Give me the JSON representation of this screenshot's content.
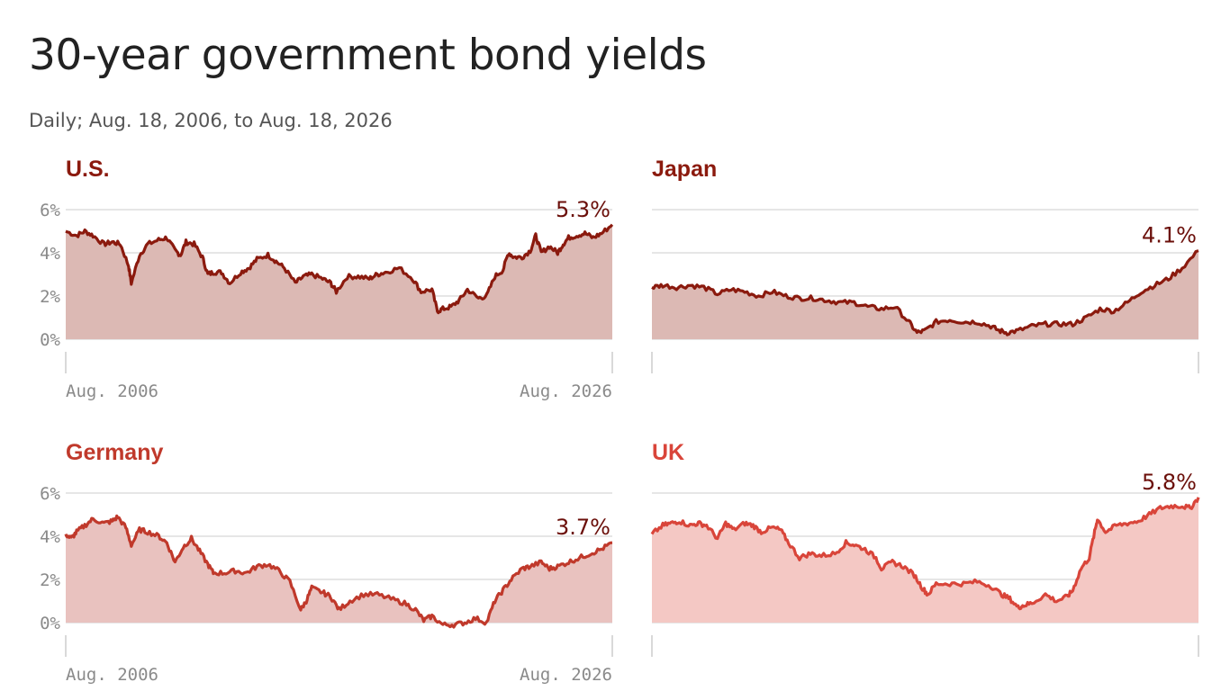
{
  "title": "30-year government bond yields",
  "subtitle": "Daily; Aug. 18, 2006, to Aug. 18, 2026",
  "chart_data": [
    {
      "type": "area",
      "title": "U.S.",
      "color": "#8b1a0e",
      "fill": "#dcb9b4",
      "ylim": [
        0,
        6
      ],
      "yticks": [
        "0%",
        "2%",
        "4%",
        "6%"
      ],
      "xtick_labels": [
        "Aug. 2006",
        "Aug. 2026"
      ],
      "end_label": "5.3%",
      "x": [
        2006.6,
        2007.0,
        2007.3,
        2007.6,
        2008.0,
        2008.3,
        2008.6,
        2008.9,
        2009.0,
        2009.3,
        2009.6,
        2010.0,
        2010.3,
        2010.6,
        2010.8,
        2011.0,
        2011.3,
        2011.6,
        2011.8,
        2012.0,
        2012.3,
        2012.6,
        2013.0,
        2013.3,
        2013.6,
        2014.0,
        2014.3,
        2014.6,
        2015.0,
        2015.3,
        2015.6,
        2016.0,
        2016.3,
        2016.5,
        2016.9,
        2017.3,
        2017.7,
        2018.0,
        2018.3,
        2018.8,
        2019.3,
        2019.6,
        2020.0,
        2020.2,
        2020.4,
        2020.7,
        2021.0,
        2021.3,
        2021.7,
        2022.0,
        2022.3,
        2022.6,
        2022.8,
        2023.0,
        2023.3,
        2023.6,
        2023.8,
        2024.0,
        2024.3,
        2024.6,
        2024.8,
        2025.0,
        2025.3,
        2025.6,
        2025.9,
        2026.2,
        2026.6
      ],
      "values": [
        5.0,
        4.8,
        5.0,
        4.8,
        4.4,
        4.5,
        4.4,
        3.4,
        2.6,
        3.9,
        4.4,
        4.6,
        4.7,
        4.1,
        3.9,
        4.5,
        4.4,
        3.8,
        3.0,
        3.1,
        3.1,
        2.6,
        3.1,
        3.3,
        3.7,
        3.9,
        3.6,
        3.3,
        2.6,
        2.9,
        3.0,
        2.8,
        2.6,
        2.2,
        2.9,
        2.9,
        2.8,
        3.0,
        3.1,
        3.3,
        2.8,
        2.2,
        2.3,
        1.3,
        1.4,
        1.5,
        1.8,
        2.3,
        1.9,
        2.0,
        2.9,
        3.2,
        4.0,
        3.8,
        3.8,
        4.1,
        4.8,
        4.0,
        4.3,
        4.0,
        4.4,
        4.7,
        4.8,
        4.9,
        4.7,
        4.9,
        5.3
      ]
    },
    {
      "type": "area",
      "title": "Japan",
      "color": "#8b1a0e",
      "fill": "#dcb9b4",
      "ylim": [
        0,
        6
      ],
      "yticks": [
        "0%",
        "2%",
        "4%",
        "6%"
      ],
      "xtick_labels": [],
      "end_label": "4.1%",
      "x": [
        2006.6,
        2007.0,
        2007.5,
        2008.0,
        2008.5,
        2009.0,
        2009.5,
        2010.0,
        2010.5,
        2011.0,
        2011.5,
        2012.0,
        2012.5,
        2013.0,
        2013.5,
        2014.0,
        2014.5,
        2015.0,
        2015.5,
        2016.0,
        2016.3,
        2016.6,
        2017.0,
        2017.5,
        2018.0,
        2018.5,
        2019.0,
        2019.3,
        2019.6,
        2020.0,
        2020.5,
        2021.0,
        2021.5,
        2022.0,
        2022.5,
        2023.0,
        2023.5,
        2024.0,
        2024.5,
        2025.0,
        2025.5,
        2026.0,
        2026.6
      ],
      "values": [
        2.4,
        2.5,
        2.4,
        2.5,
        2.4,
        2.1,
        2.3,
        2.2,
        2.0,
        2.2,
        2.0,
        1.9,
        1.9,
        1.8,
        1.7,
        1.7,
        1.5,
        1.4,
        1.5,
        0.8,
        0.3,
        0.4,
        0.8,
        0.9,
        0.8,
        0.8,
        0.6,
        0.4,
        0.3,
        0.4,
        0.6,
        0.7,
        0.7,
        0.7,
        1.0,
        1.4,
        1.3,
        1.7,
        2.2,
        2.5,
        2.8,
        3.3,
        4.1
      ]
    },
    {
      "type": "area",
      "title": "Germany",
      "color": "#c0392b",
      "fill": "#e9c2bf",
      "ylim": [
        0,
        6
      ],
      "yticks": [
        "0%",
        "2%",
        "4%",
        "6%"
      ],
      "xtick_labels": [
        "Aug. 2006",
        "Aug. 2026"
      ],
      "end_label": "3.7%",
      "x": [
        2006.6,
        2006.8,
        2007.0,
        2007.3,
        2007.6,
        2008.0,
        2008.3,
        2008.5,
        2008.8,
        2009.0,
        2009.3,
        2009.6,
        2010.0,
        2010.3,
        2010.6,
        2010.9,
        2011.2,
        2011.5,
        2011.8,
        2012.0,
        2012.4,
        2012.8,
        2013.2,
        2013.6,
        2014.0,
        2014.4,
        2014.8,
        2015.2,
        2015.4,
        2015.6,
        2016.0,
        2016.3,
        2016.6,
        2017.0,
        2017.5,
        2018.0,
        2018.5,
        2019.0,
        2019.4,
        2019.7,
        2020.0,
        2020.4,
        2020.8,
        2021.2,
        2021.6,
        2022.0,
        2022.3,
        2022.6,
        2022.9,
        2023.3,
        2023.6,
        2024.0,
        2024.3,
        2024.6,
        2025.0,
        2025.4,
        2025.8,
        2026.2,
        2026.6
      ],
      "values": [
        4.1,
        3.9,
        4.2,
        4.5,
        4.8,
        4.6,
        4.7,
        4.9,
        4.4,
        3.6,
        4.3,
        4.2,
        4.0,
        3.7,
        2.8,
        3.5,
        3.9,
        3.3,
        2.7,
        2.3,
        2.3,
        2.4,
        2.3,
        2.6,
        2.7,
        2.4,
        1.9,
        0.6,
        1.0,
        1.6,
        1.4,
        1.2,
        0.6,
        1.0,
        1.3,
        1.3,
        1.1,
        0.9,
        0.6,
        0.1,
        0.3,
        -0.1,
        -0.1,
        0.0,
        0.2,
        0.0,
        1.0,
        1.5,
        2.0,
        2.5,
        2.6,
        2.8,
        2.5,
        2.6,
        2.8,
        3.0,
        3.2,
        3.4,
        3.7
      ]
    },
    {
      "type": "area",
      "title": "UK",
      "color": "#d9453a",
      "fill": "#f4c8c4",
      "ylim": [
        0,
        6
      ],
      "yticks": [
        "0%",
        "2%",
        "4%",
        "6%"
      ],
      "xtick_labels": [],
      "end_label": "5.8%",
      "x": [
        2006.6,
        2007.0,
        2007.3,
        2007.6,
        2008.0,
        2008.3,
        2008.6,
        2009.0,
        2009.3,
        2009.6,
        2010.0,
        2010.3,
        2010.6,
        2011.0,
        2011.3,
        2011.6,
        2012.0,
        2012.4,
        2012.8,
        2013.3,
        2013.7,
        2014.0,
        2014.4,
        2014.8,
        2015.0,
        2015.4,
        2015.8,
        2016.2,
        2016.5,
        2016.7,
        2017.0,
        2017.5,
        2018.0,
        2018.5,
        2019.0,
        2019.4,
        2019.7,
        2020.0,
        2020.2,
        2020.5,
        2021.0,
        2021.4,
        2021.8,
        2022.0,
        2022.3,
        2022.6,
        2022.8,
        2022.9,
        2023.2,
        2023.6,
        2024.0,
        2024.4,
        2024.8,
        2025.2,
        2025.6,
        2026.0,
        2026.3,
        2026.6
      ],
      "values": [
        4.1,
        4.5,
        4.6,
        4.7,
        4.5,
        4.6,
        4.5,
        3.9,
        4.6,
        4.3,
        4.6,
        4.5,
        4.2,
        4.4,
        4.3,
        3.7,
        3.0,
        3.2,
        3.1,
        3.2,
        3.7,
        3.6,
        3.4,
        3.0,
        2.5,
        2.8,
        2.6,
        2.2,
        1.6,
        1.3,
        1.8,
        1.8,
        1.8,
        1.9,
        1.7,
        1.3,
        1.1,
        0.7,
        0.8,
        0.9,
        1.3,
        1.0,
        1.2,
        1.5,
        2.5,
        3.0,
        4.2,
        4.8,
        4.2,
        4.5,
        4.6,
        4.7,
        5.0,
        5.3,
        5.4,
        5.4,
        5.3,
        5.8
      ]
    }
  ]
}
